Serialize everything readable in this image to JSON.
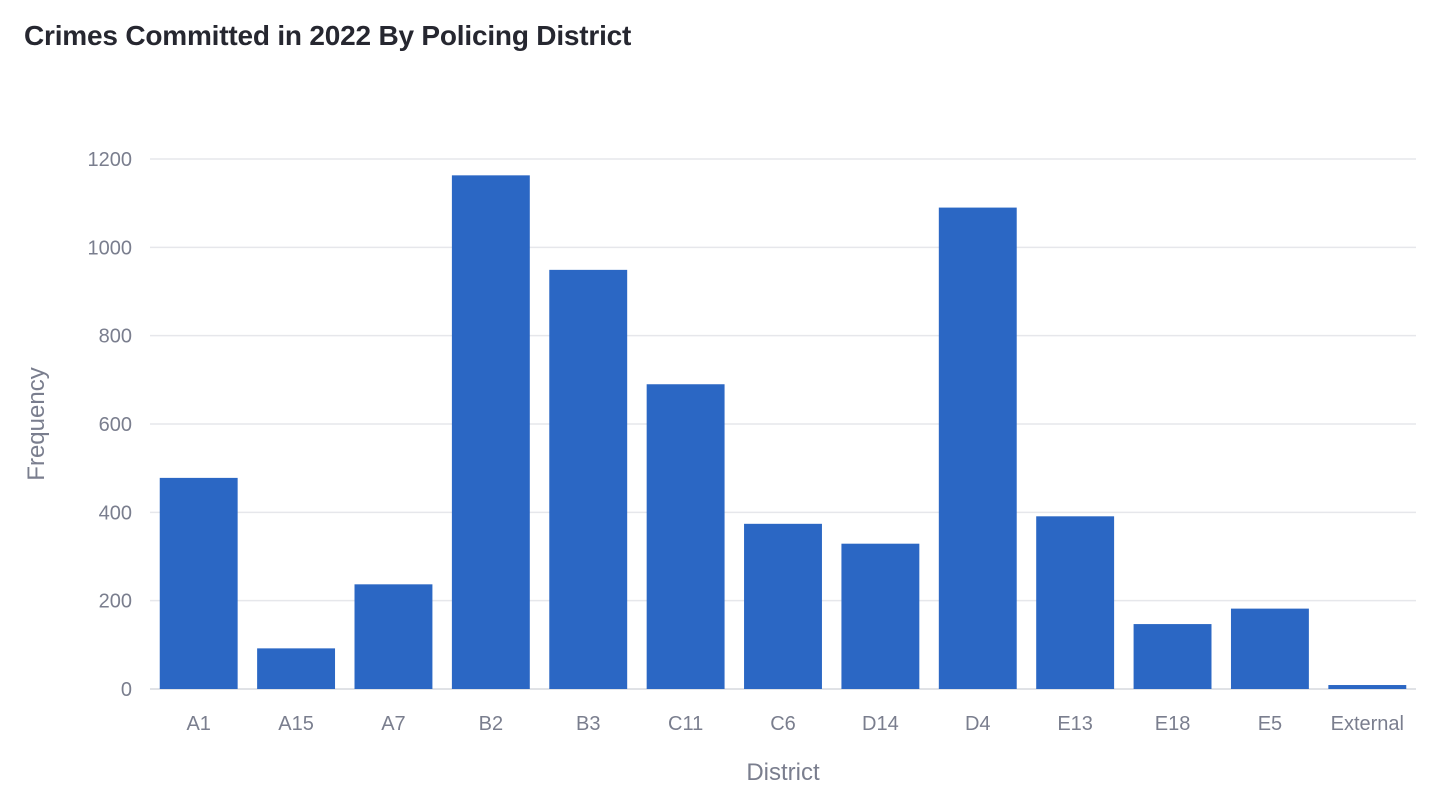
{
  "chart_data": {
    "type": "bar",
    "title": "Crimes Committed in 2022 By Policing District",
    "xlabel": "District",
    "ylabel": "Frequency",
    "categories": [
      "A1",
      "A15",
      "A7",
      "B2",
      "B3",
      "C11",
      "C6",
      "D14",
      "D4",
      "E13",
      "E18",
      "E5",
      "External"
    ],
    "values": [
      478,
      92,
      237,
      1163,
      949,
      690,
      374,
      329,
      1090,
      391,
      147,
      182,
      9
    ],
    "ylim": [
      0,
      1200
    ],
    "yticks": [
      0,
      200,
      400,
      600,
      800,
      1000,
      1200
    ],
    "grid": true,
    "legend": "none",
    "colors": {
      "bar": "#2b67c4",
      "grid": "#e6e7eb",
      "text": "#7a7e8e",
      "title": "#262730"
    }
  }
}
